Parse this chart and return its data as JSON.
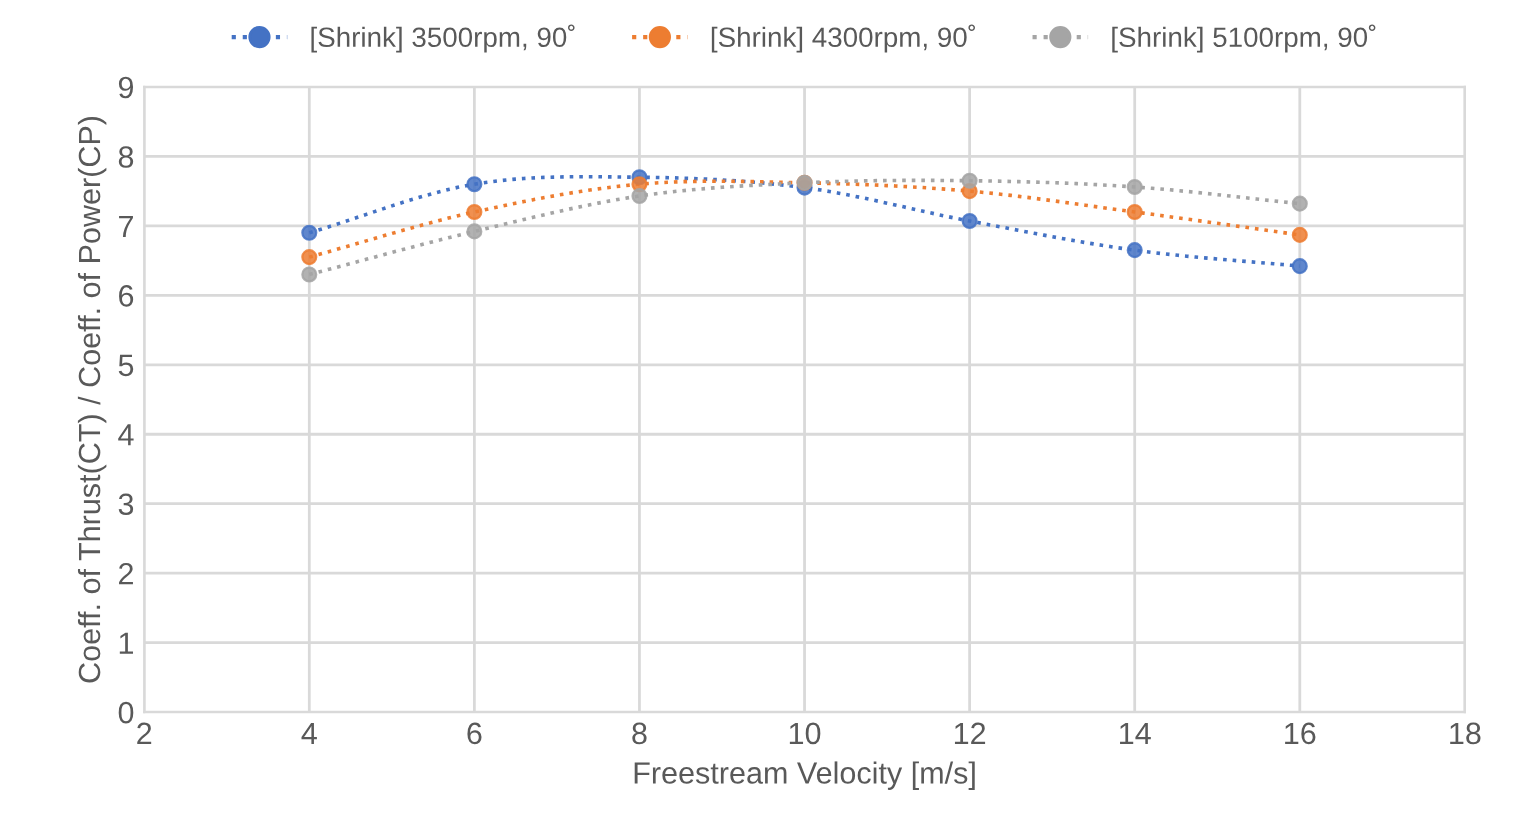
{
  "chart_data": {
    "type": "line",
    "xlabel": "Freestream Velocity [m/s]",
    "ylabel": "Coeff. of Thrust(CT) / Coeff. of Power(CP)",
    "x": [
      4,
      6,
      8,
      10,
      12,
      14,
      16
    ],
    "series": [
      {
        "name": "[Shrink] 3500rpm, 90˚",
        "color": "#4472c4",
        "values": [
          6.9,
          7.6,
          7.7,
          7.55,
          7.07,
          6.65,
          6.42
        ]
      },
      {
        "name": "[Shrink] 4300rpm, 90˚",
        "color": "#ed7d31",
        "values": [
          6.55,
          7.2,
          7.6,
          7.62,
          7.5,
          7.2,
          6.87
        ]
      },
      {
        "name": "[Shrink] 5100rpm, 90˚",
        "color": "#a5a5a5",
        "values": [
          6.3,
          6.92,
          7.43,
          7.62,
          7.65,
          7.56,
          7.32
        ]
      }
    ],
    "xlim": [
      2,
      18
    ],
    "xticks": [
      2,
      4,
      6,
      8,
      10,
      12,
      14,
      16,
      18
    ],
    "ylim": [
      0,
      9
    ],
    "yticks": [
      0,
      1,
      2,
      3,
      4,
      5,
      6,
      7,
      8,
      9
    ],
    "grid": true,
    "legend": "top",
    "marker": "circle",
    "line_style": "dotted"
  }
}
